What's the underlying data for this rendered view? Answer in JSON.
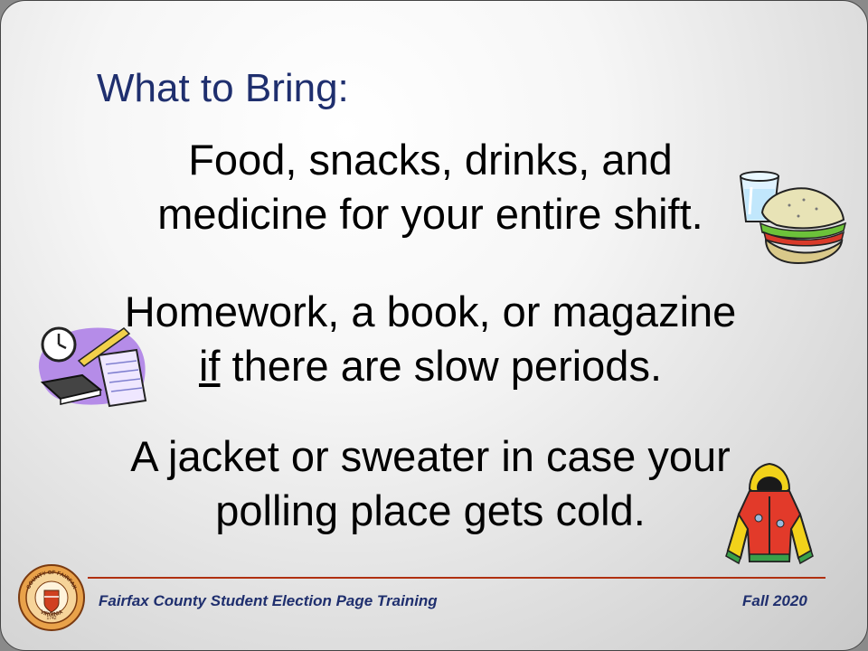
{
  "slide": {
    "title": "What to Bring:",
    "items": [
      {
        "line1": "Food, snacks, drinks, and",
        "line2": "medicine for your entire shift."
      },
      {
        "line1": "Homework, a book, or magazine",
        "line2_underlined": "if",
        "line2_rest": " there are slow periods."
      },
      {
        "line1": "A jacket or sweater in case your",
        "line2": "polling place gets cold."
      }
    ]
  },
  "footer": {
    "left_text": "Fairfax County Student Election Page Training",
    "right_text": "Fall 2020"
  },
  "seal": {
    "text_top": "COUNTY OF FAIRFAX",
    "text_bottom": "VIRGINIA",
    "year": "1742"
  },
  "colors": {
    "title": "#1f2f6e",
    "footer_text": "#1f2f6e",
    "footer_line": "#b03010"
  },
  "icons": [
    "food-clipart-icon",
    "homework-clipart-icon",
    "jacket-clipart-icon",
    "county-seal-icon"
  ]
}
